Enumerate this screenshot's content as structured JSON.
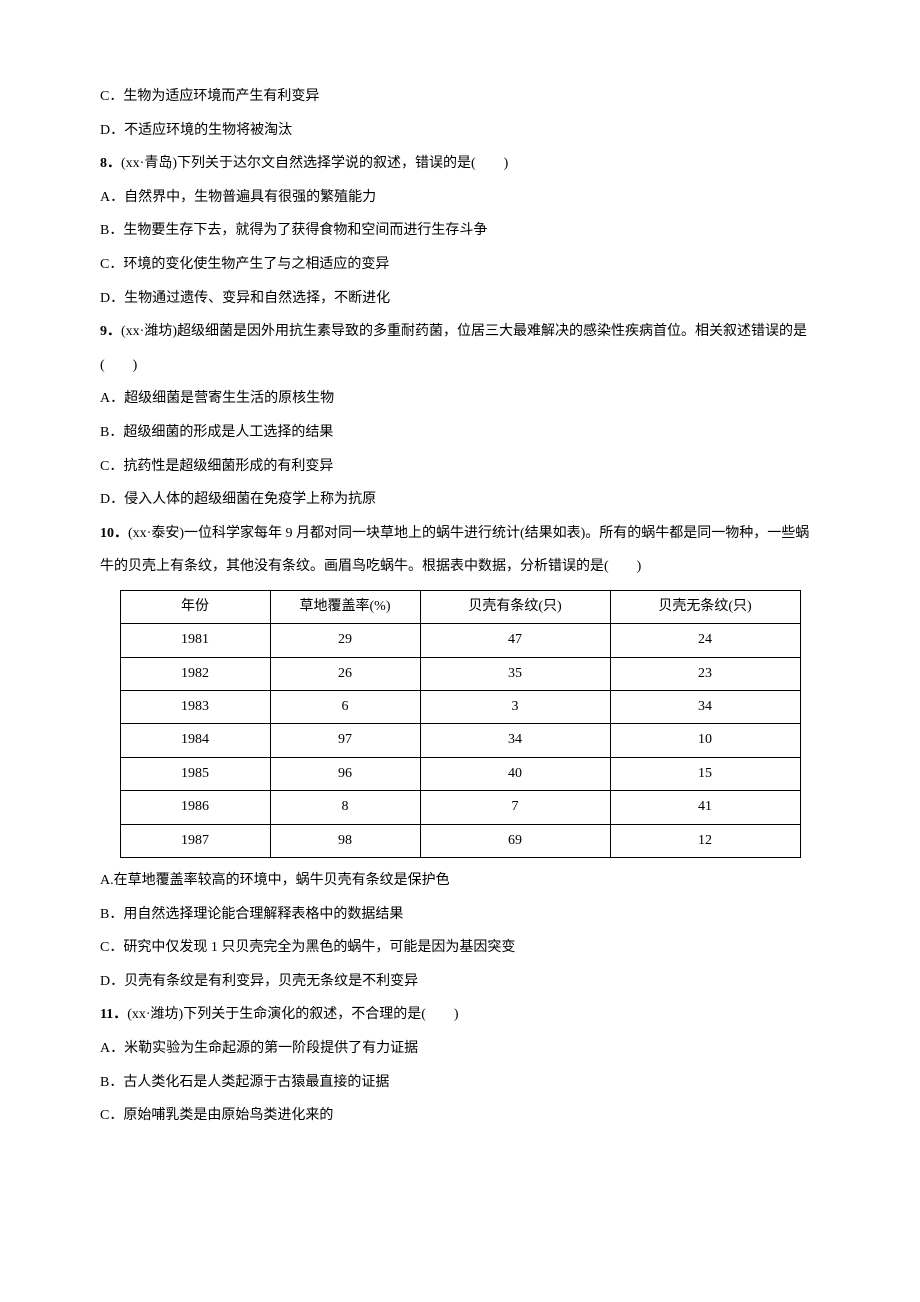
{
  "lines": {
    "l0": "C．生物为适应环境而产生有利变异",
    "l1": "D．不适应环境的生物将被淘汰",
    "q8": "8．",
    "q8r": "(xx·青岛)下列关于达尔文自然选择学说的叙述，错误的是(　　)",
    "l3": "A．自然界中，生物普遍具有很强的繁殖能力",
    "l4": "B．生物要生存下去，就得为了获得食物和空间而进行生存斗争",
    "l5": "C．环境的变化使生物产生了与之相适应的变异",
    "l6": "D．生物通过遗传、变异和自然选择，不断进化",
    "q9": "9．",
    "q9r": "(xx·潍坊)超级细菌是因外用抗生素导致的多重耐药菌，位居三大最难解决的感染性疾病首位。相关叙述错误的是(　　)",
    "l8": "A．超级细菌是营寄生生活的原核生物",
    "l9": "B．超级细菌的形成是人工选择的结果",
    "l10": "C．抗药性是超级细菌形成的有利变异",
    "l11": "D．侵入人体的超级细菌在免疫学上称为抗原",
    "q10": "10．",
    "q10r": "(xx·泰安)一位科学家每年 9 月都对同一块草地上的蜗牛进行统计(结果如表)。所有的蜗牛都是同一物种，一些蜗牛的贝壳上有条纹，其他没有条纹。画眉鸟吃蜗牛。根据表中数据，分析错误的是(　　)",
    "l13": "A.在草地覆盖率较高的环境中，蜗牛贝壳有条纹是保护色",
    "l14": "B．用自然选择理论能合理解释表格中的数据结果",
    "l15": "C．研究中仅发现 1 只贝壳完全为黑色的蜗牛，可能是因为基因突变",
    "l16": "D．贝壳有条纹是有利变异，贝壳无条纹是不利变异",
    "q11": "11．",
    "q11r": "(xx·潍坊)下列关于生命演化的叙述，不合理的是(　　)",
    "l18": "A．米勒实验为生命起源的第一阶段提供了有力证据",
    "l19": "B．古人类化石是人类起源于古猿最直接的证据",
    "l20": "C．原始哺乳类是由原始鸟类进化来的"
  },
  "table": {
    "columns": [
      "年份",
      "草地覆盖率(%)",
      "贝壳有条纹(只)",
      "贝壳无条纹(只)"
    ],
    "rows": [
      [
        "1981",
        "29",
        "47",
        "24"
      ],
      [
        "1982",
        "26",
        "35",
        "23"
      ],
      [
        "1983",
        "6",
        "3",
        "34"
      ],
      [
        "1984",
        "97",
        "34",
        "10"
      ],
      [
        "1985",
        "96",
        "40",
        "15"
      ],
      [
        "1986",
        "8",
        "7",
        "41"
      ],
      [
        "1987",
        "98",
        "69",
        "12"
      ]
    ]
  }
}
